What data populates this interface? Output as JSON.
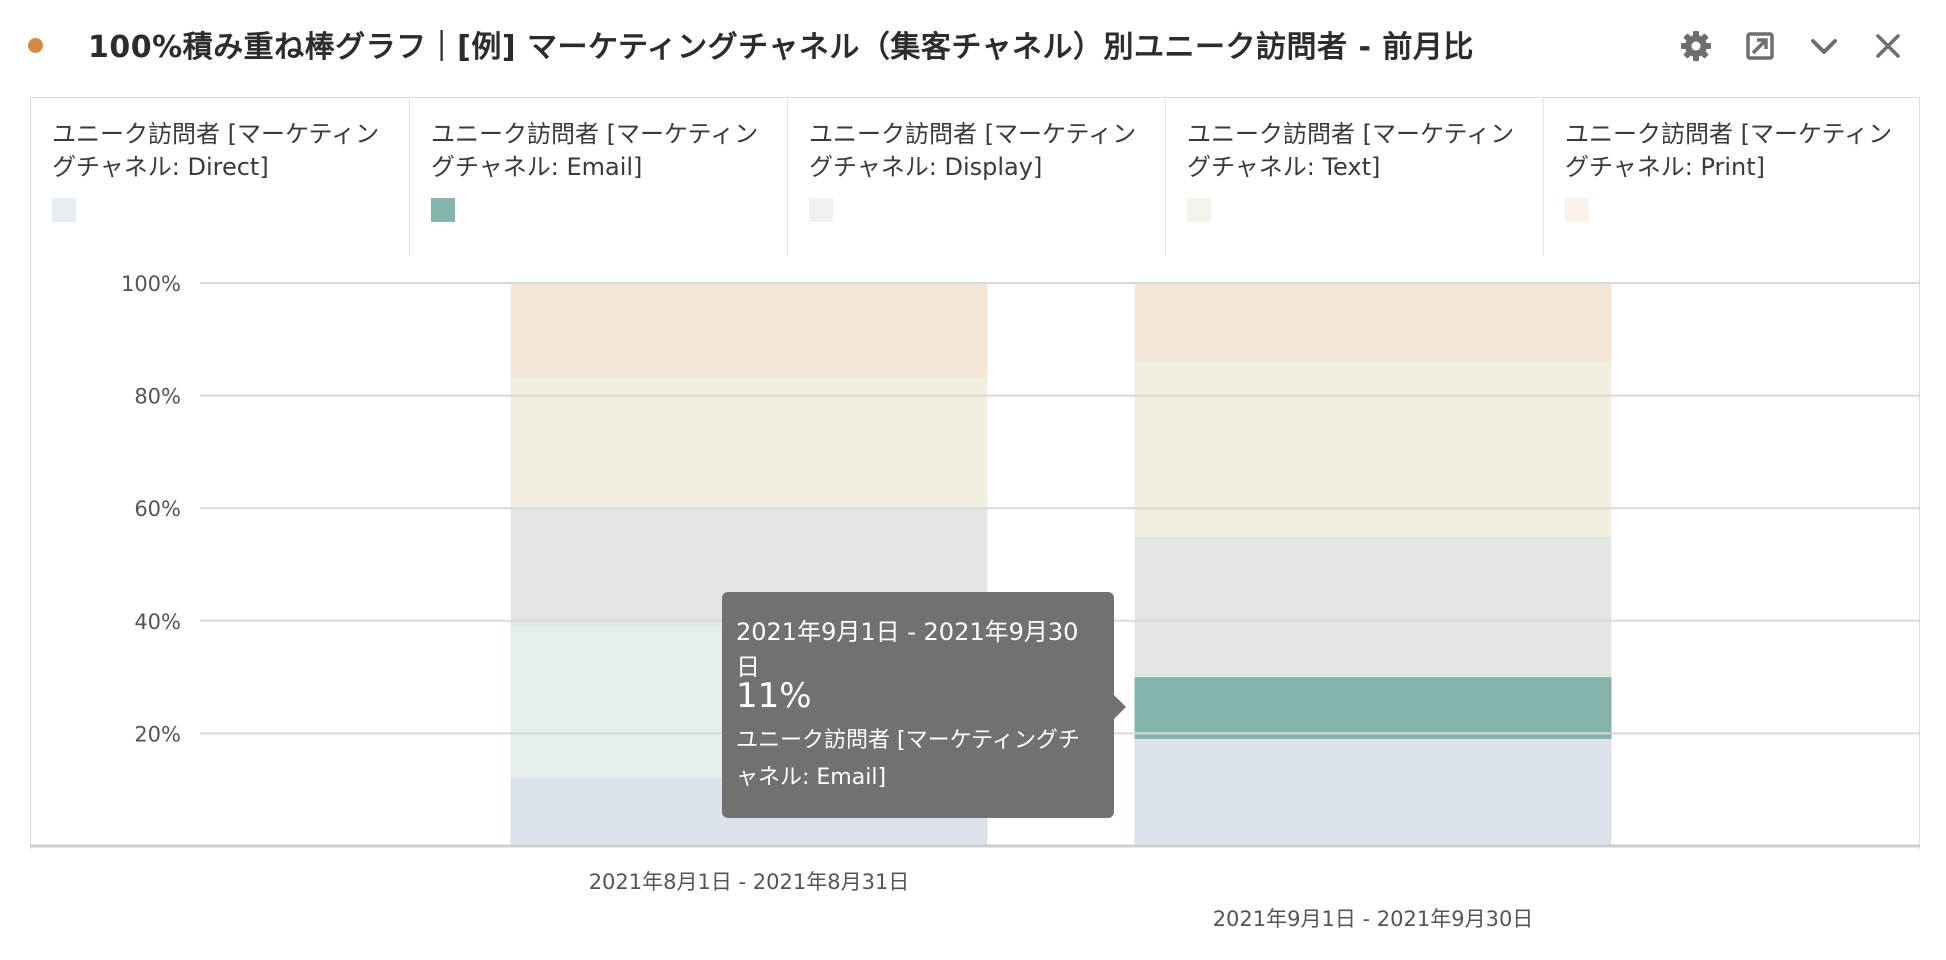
{
  "header": {
    "title": "100%積み重ね棒グラフ｜[例] マーケティングチャネル（集客チャネル）別ユニーク訪問者 - 前月比",
    "status_color": "#d68945",
    "buttons": [
      {
        "name": "settings",
        "icon": "gear-icon"
      },
      {
        "name": "expand",
        "icon": "expand-icon"
      },
      {
        "name": "collapse",
        "icon": "chevron-down-icon"
      },
      {
        "name": "close",
        "icon": "close-icon"
      }
    ]
  },
  "legend": [
    {
      "label": "ユニーク訪問者 [マーケティングチャネル: Direct]",
      "color": "#e8ecf3"
    },
    {
      "label": "ユニーク訪問者 [マーケティングチャネル: Email]",
      "color": "#84b4ab"
    },
    {
      "label": "ユニーク訪問者 [マーケティングチャネル: Display]",
      "color": "#eef2ef"
    },
    {
      "label": "ユニーク訪問者 [マーケティングチャネル: Text]",
      "color": "#f6f4ea"
    },
    {
      "label": "ユニーク訪問者 [マーケティングチャネル: Print]",
      "color": "#fcf2ec"
    }
  ],
  "tooltip": {
    "date": "2021年9月1日 - 2021年9月30日",
    "value": "11%",
    "series": "ユニーク訪問者 [マーケティングチャネル: Email]"
  },
  "chart_data": {
    "type": "bar",
    "stacked": "100%",
    "categories": [
      "2021年8月1日 - 2021年8月31日",
      "2021年9月1日 - 2021年9月30日"
    ],
    "series": [
      {
        "name": "ユニーク訪問者 [マーケティングチャネル: Direct]",
        "values": [
          12,
          19
        ],
        "color": "#dbe2ea"
      },
      {
        "name": "ユニーク訪問者 [マーケティングチャネル: Email]",
        "values": [
          27,
          11
        ],
        "color": "#e4eeec"
      },
      {
        "name": "ユニーク訪問者 [マーケティングチャネル: Display]",
        "values": [
          21,
          25
        ],
        "color": "#e2e8e1"
      },
      {
        "name": "ユニーク訪問者 [マーケティングチャネル: Text]",
        "values": [
          23,
          31
        ],
        "color": "#f2efe0"
      },
      {
        "name": "ユニーク訪問者 [マーケティングチャネル: Print]",
        "values": [
          17,
          14
        ],
        "color": "#f5e6da"
      }
    ],
    "highlight": {
      "category_index": 1,
      "series_index": 1,
      "color": "#84b4ab"
    },
    "ylim": [
      0,
      100
    ],
    "yticks": [
      "20%",
      "40%",
      "60%",
      "80%",
      "100%"
    ],
    "grid": true
  }
}
